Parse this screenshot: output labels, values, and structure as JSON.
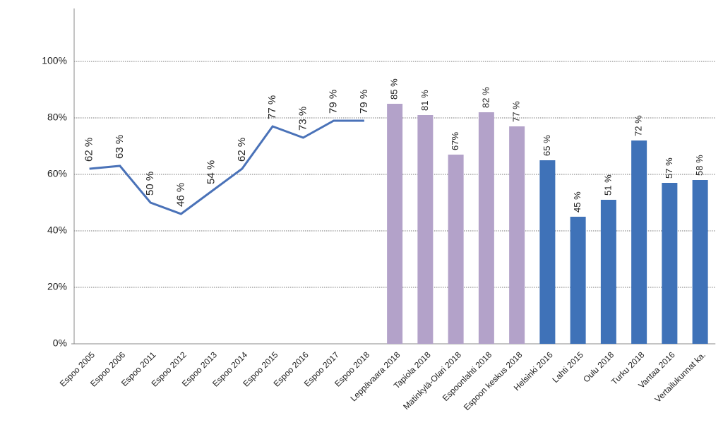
{
  "chart_data": {
    "type": "combo",
    "categories": [
      "Espoo 2005",
      "Espoo 2006",
      "Espoo 2011",
      "Espoo 2012",
      "Espoo 2013",
      "Espoo 2014",
      "Espoo 2015",
      "Espoo 2016",
      "Espoo 2017",
      "Espoo 2018",
      "Leppävaara 2018",
      "Tapiola 2018",
      "Matinkylä-Olari 2018",
      "Espoonlahti 2018",
      "Espoon keskus 2018",
      "Helsinki 2016",
      "Lahti 2015",
      "Oulu 2018",
      "Turku 2018",
      "Vantaa 2016",
      "Vertailukunnat ka."
    ],
    "series": [
      {
        "kind": "line",
        "color": "#4a72b8",
        "values": [
          62,
          63,
          50,
          46,
          54,
          62,
          77,
          73,
          79,
          79,
          null,
          null,
          null,
          null,
          null,
          null,
          null,
          null,
          null,
          null,
          null
        ],
        "value_labels": [
          "62 %",
          "63 %",
          "50 %",
          "46 %",
          "54 %",
          "62 %",
          "77 %",
          "73 %",
          "79 %",
          "79 %",
          null,
          null,
          null,
          null,
          null,
          null,
          null,
          null,
          null,
          null,
          null
        ]
      },
      {
        "kind": "bar",
        "color": "#b3a2c9",
        "values": [
          null,
          null,
          null,
          null,
          null,
          null,
          null,
          null,
          null,
          null,
          85,
          81,
          67,
          82,
          77,
          null,
          null,
          null,
          null,
          null,
          null
        ],
        "value_labels": [
          null,
          null,
          null,
          null,
          null,
          null,
          null,
          null,
          null,
          null,
          "85 %",
          "81 %",
          "67%",
          "82 %",
          "77 %",
          null,
          null,
          null,
          null,
          null,
          null
        ]
      },
      {
        "kind": "bar",
        "color": "#3f72b8",
        "values": [
          null,
          null,
          null,
          null,
          null,
          null,
          null,
          null,
          null,
          null,
          null,
          null,
          null,
          null,
          null,
          65,
          45,
          51,
          72,
          57,
          58
        ],
        "value_labels": [
          null,
          null,
          null,
          null,
          null,
          null,
          null,
          null,
          null,
          null,
          null,
          null,
          null,
          null,
          null,
          "65 %",
          "45 %",
          "51 %",
          "72 %",
          "57 %",
          "58 %"
        ]
      }
    ],
    "ylim": [
      0,
      120
    ],
    "yticks": [
      {
        "value": 0,
        "label": "0%"
      },
      {
        "value": 20,
        "label": "20%"
      },
      {
        "value": 40,
        "label": "40%"
      },
      {
        "value": 60,
        "label": "60%"
      },
      {
        "value": 80,
        "label": "80%"
      },
      {
        "value": 100,
        "label": "100%"
      }
    ],
    "grid": true
  }
}
